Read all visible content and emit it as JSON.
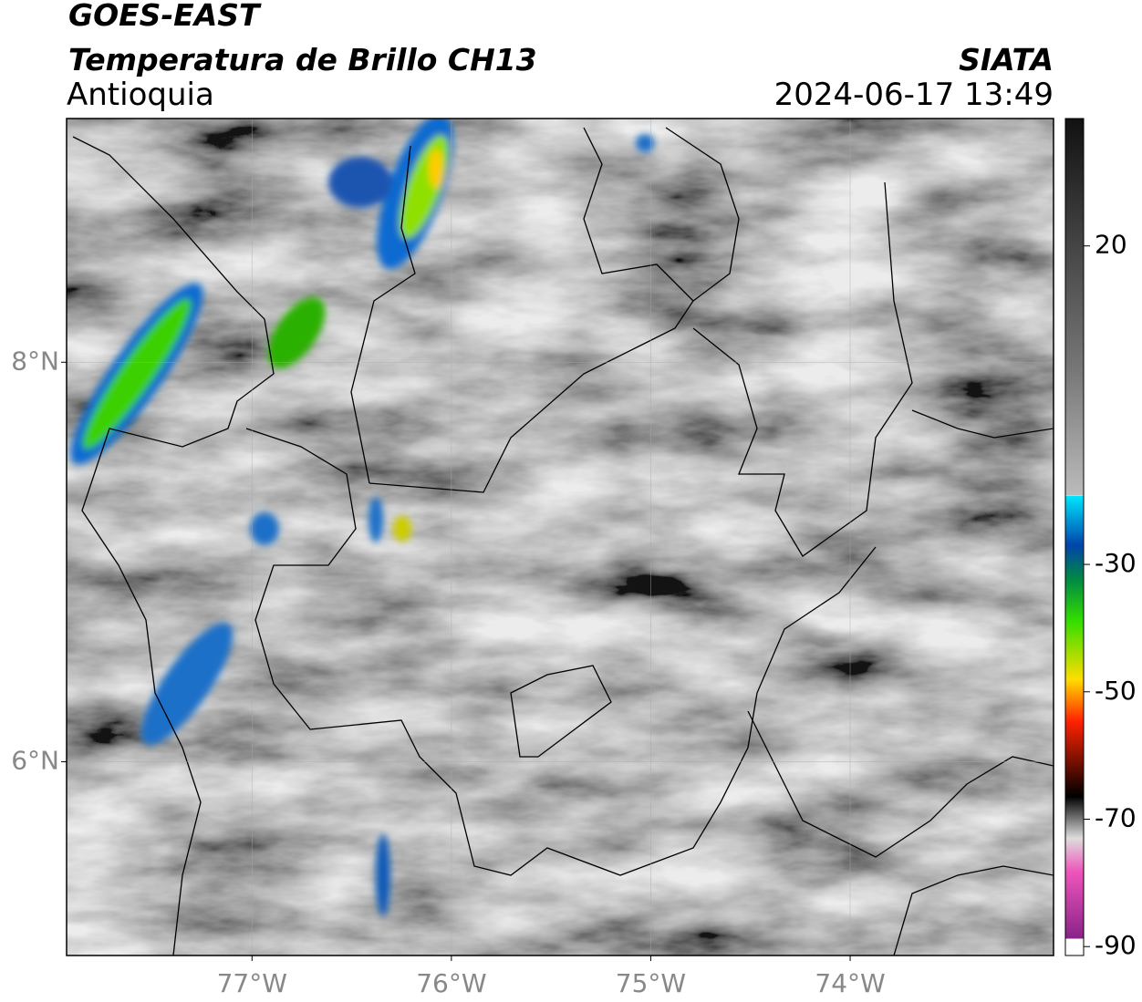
{
  "header": {
    "satellite": "GOES-EAST",
    "product": "Temperatura de Brillo CH13",
    "organization": "SIATA",
    "region": "Antioquia",
    "datetime": "2024-06-17 13:49"
  },
  "map": {
    "xlim": [
      -77.93,
      -72.98
    ],
    "ylim": [
      5.03,
      9.22
    ],
    "xticks": [
      {
        "value": -77,
        "label": "77°W"
      },
      {
        "value": -76,
        "label": "76°W"
      },
      {
        "value": -75,
        "label": "75°W"
      },
      {
        "value": -74,
        "label": "74°W"
      }
    ],
    "yticks": [
      {
        "value": 6,
        "label": "6°N"
      },
      {
        "value": 8,
        "label": "8°N"
      }
    ],
    "grid": true
  },
  "colorbar": {
    "lim": [
      -91.4,
      40
    ],
    "ticks": [
      20,
      -30,
      -50,
      -70,
      -90
    ]
  }
}
